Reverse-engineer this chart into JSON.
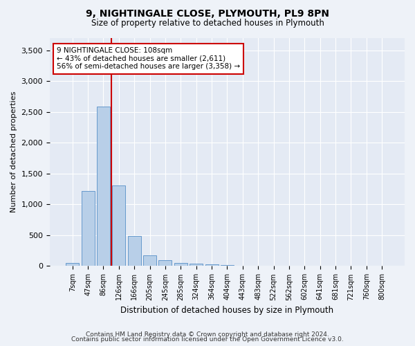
{
  "title1": "9, NIGHTINGALE CLOSE, PLYMOUTH, PL9 8PN",
  "title2": "Size of property relative to detached houses in Plymouth",
  "xlabel": "Distribution of detached houses by size in Plymouth",
  "ylabel": "Number of detached properties",
  "categories": [
    "7sqm",
    "47sqm",
    "86sqm",
    "126sqm",
    "166sqm",
    "205sqm",
    "245sqm",
    "285sqm",
    "324sqm",
    "364sqm",
    "404sqm",
    "443sqm",
    "483sqm",
    "522sqm",
    "562sqm",
    "602sqm",
    "641sqm",
    "681sqm",
    "721sqm",
    "760sqm",
    "800sqm"
  ],
  "values": [
    50,
    1220,
    2590,
    1310,
    490,
    175,
    100,
    55,
    40,
    30,
    20,
    0,
    0,
    0,
    0,
    0,
    0,
    0,
    0,
    0,
    0
  ],
  "bar_color": "#b8cfe8",
  "bar_edge_color": "#6699cc",
  "vline_x_index": 2,
  "vline_color": "#cc0000",
  "annotation_line1": "9 NIGHTINGALE CLOSE: 108sqm",
  "annotation_line2": "← 43% of detached houses are smaller (2,611)",
  "annotation_line3": "56% of semi-detached houses are larger (3,358) →",
  "annotation_box_color": "#ffffff",
  "annotation_box_edge": "#cc0000",
  "ylim": [
    0,
    3700
  ],
  "yticks": [
    0,
    500,
    1000,
    1500,
    2000,
    2500,
    3000,
    3500
  ],
  "footer1": "Contains HM Land Registry data © Crown copyright and database right 2024.",
  "footer2": "Contains public sector information licensed under the Open Government Licence v3.0.",
  "bg_color": "#eef2f8",
  "plot_bg_color": "#e4eaf4"
}
